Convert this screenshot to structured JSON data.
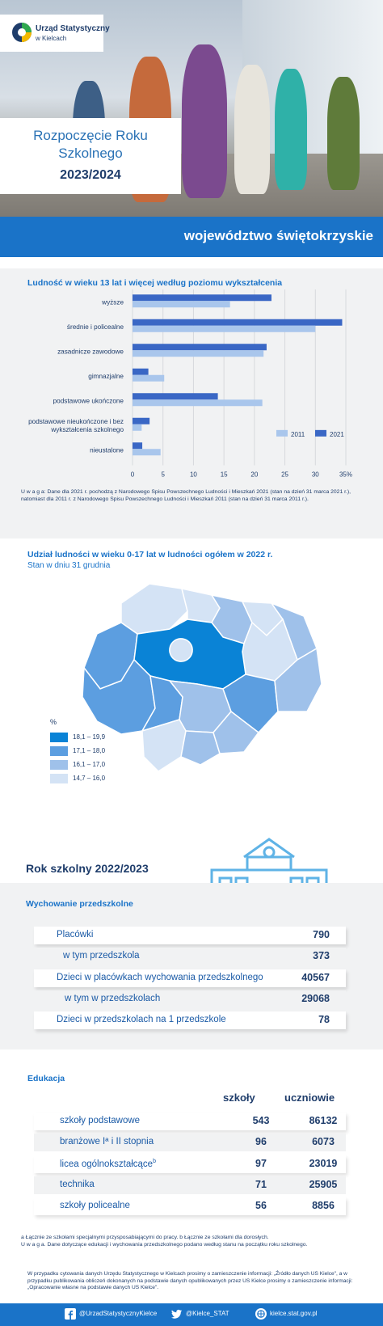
{
  "header": {
    "logo_line1": "Urząd Statystyczny",
    "logo_line2": "w Kielcach",
    "title_line1": "Rozpoczęcie Roku",
    "title_line2": "Szkolnego",
    "title_line3": "2023/2024",
    "region": "województwo świętokrzyskie"
  },
  "colors": {
    "accent": "#1a73c8",
    "dark": "#1f3d6b",
    "bar_2011": "#a9c6ec",
    "bar_2021": "#3a67c5",
    "map_1": "#0a83d6",
    "map_2": "#5c9ee0",
    "map_3": "#9fc1ea",
    "map_4": "#d4e3f5"
  },
  "education_chart": {
    "title": "Ludność w wieku 13 lat i więcej według poziomu wykształcenia",
    "note": "U w a g a: Dane dla 2021 r. pochodzą z Narodowego Spisu Powszechnego Ludności i Mieszkań 2021 (stan na dzień 31 marca 2021 r.), natomiast dla 2011 r. z Narodowego Spisu Powszechnego Ludności i Mieszkań 2011 (stan na dzień 31 marca 2011 r.).",
    "x_ticks": [
      "0",
      "5",
      "10",
      "15",
      "20",
      "25",
      "30",
      "35%"
    ]
  },
  "chart_data": {
    "type": "bar",
    "orientation": "horizontal",
    "categories": [
      "wyższe",
      "średnie i policealne",
      "zasadnicze zawodowe",
      "gimnazjalne",
      "podstawowe ukończone",
      "podstawowe nieukończone i bez wykształcenia szkolnego",
      "nieustalone"
    ],
    "category_lines": [
      [
        "wyższe"
      ],
      [
        "średnie i policealne"
      ],
      [
        "zasadnicze zawodowe"
      ],
      [
        "gimnazjalne"
      ],
      [
        "podstawowe ukończone"
      ],
      [
        "podstawowe nieukończone i bez",
        "wykształcenia szkolnego"
      ],
      [
        "nieustalone"
      ]
    ],
    "series": [
      {
        "name": "2011",
        "values": [
          16.0,
          30.0,
          21.5,
          5.2,
          21.3,
          1.5,
          4.6
        ]
      },
      {
        "name": "2021",
        "values": [
          22.8,
          34.4,
          22.0,
          2.6,
          14.0,
          2.8,
          1.6
        ]
      }
    ],
    "xlim": [
      0,
      35
    ],
    "legend_position": "bottom-right",
    "grid": true
  },
  "map": {
    "title": "Udział ludności w wieku 0-17 lat w ludności ogółem w 2022 r.",
    "subtitle": "Stan w dniu 31 grudnia",
    "legend_title": "%",
    "legend": [
      "18,1  –  19,9",
      "17,1  –  18,0",
      "16,1  –  17,0",
      "14,7  –  16,0"
    ]
  },
  "school_year": {
    "title": "Rok szkolny 2022/2023",
    "preschool_title": "Wychowanie przedszkolne",
    "preschool_rows": [
      {
        "label": "Placówki",
        "value": "790"
      },
      {
        "label": "w tym przedszkola",
        "value": "373"
      },
      {
        "label": "Dzieci w placówkach wychowania przedszkolnego",
        "value": "40567"
      },
      {
        "label": "w tym w przedszkolach",
        "value": "29068"
      },
      {
        "label": "Dzieci w przedszkolach na 1 przedszkole",
        "value": "78"
      }
    ],
    "edu_title": "Edukacja",
    "col_schools": "szkoły",
    "col_students": "uczniowie",
    "edu_rows": [
      {
        "label": "szkoły podstawowe",
        "schools": "543",
        "students": "86132"
      },
      {
        "label": "branżowe Iª i II stopnia",
        "schools": "96",
        "students": "6073"
      },
      {
        "label": "licea ogólnokształcące",
        "sup": "b",
        "schools": "97",
        "students": "23019"
      },
      {
        "label": "technika",
        "schools": "71",
        "students": "25905"
      },
      {
        "label": "szkoły policealne",
        "schools": "56",
        "students": "8856"
      }
    ],
    "footnote1": "a Łącznie ze szkołami specjalnymi przysposabiającymi do pracy. b Łącznie ze szkołami dla dorosłych.",
    "footnote2": "U w a g a. Dane dotyczące edukacji i wychowania przedszkolnego podano według stanu na początku roku szkolnego."
  },
  "citation": "W przypadku cytowania danych Urzędu Statystycznego w Kielcach prosimy o zamieszczenie informacji: „Źródło danych US Kielce\", a w przypadku publikowania obliczeń dokonanych na podstawie danych opublikowanych przez US Kielce prosimy o zamieszczenie informacji: „Opracowanie własne na podstawie danych US Kielce\".",
  "footer": {
    "facebook": "@UrzadStatystycznyKielce",
    "twitter": "@Kielce_STAT",
    "web": "kielce.stat.gov.pl"
  }
}
